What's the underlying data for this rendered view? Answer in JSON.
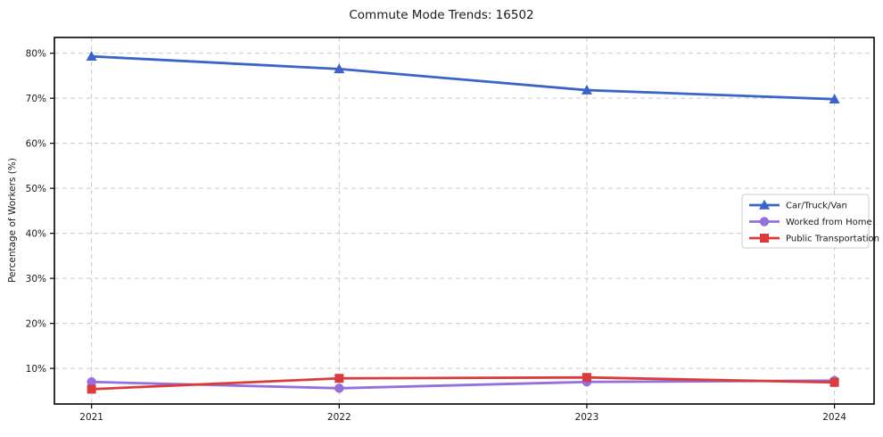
{
  "chart_data": {
    "type": "line",
    "title": "Commute Mode Trends: 16502",
    "xlabel": "",
    "ylabel": "Percentage of Workers (%)",
    "x": [
      2021,
      2022,
      2023,
      2024
    ],
    "xtick_labels": [
      "2021",
      "2022",
      "2023",
      "2024"
    ],
    "yticks": [
      10,
      20,
      30,
      40,
      50,
      60,
      70,
      80
    ],
    "ytick_labels": [
      "10%",
      "20%",
      "30%",
      "40%",
      "50%",
      "60%",
      "70%",
      "80%"
    ],
    "xlim": [
      2020.85,
      2024.16
    ],
    "ylim": [
      2.1,
      83.5
    ],
    "grid": true,
    "grid_style": "dashed",
    "legend_position": "center-right",
    "series": [
      {
        "name": "Car/Truck/Van",
        "color": "#3A64C8",
        "marker": "triangle",
        "values": [
          79.3,
          76.5,
          71.8,
          69.8
        ]
      },
      {
        "name": "Worked from Home",
        "color": "#9370DB",
        "marker": "circle",
        "values": [
          7.0,
          5.6,
          7.0,
          7.3
        ]
      },
      {
        "name": "Public Transportation",
        "color": "#DC3B3B",
        "marker": "square",
        "values": [
          5.4,
          7.8,
          8.0,
          6.9
        ]
      }
    ],
    "colors": {
      "grid": "#c9c9c9",
      "axis_border": "#000000",
      "background": "#ffffff",
      "legend_border": "#cccccc"
    }
  }
}
